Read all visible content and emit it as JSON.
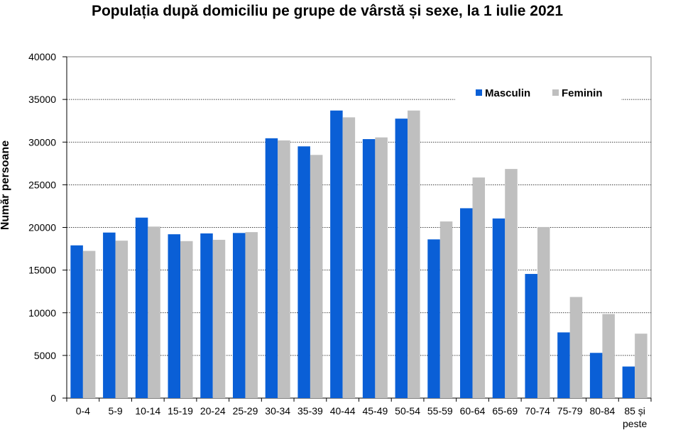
{
  "chart_data": {
    "type": "bar",
    "title": "Populația după domiciliu pe grupe de vârstă și sexe, la 1 iulie 2021",
    "xlabel": "",
    "ylabel": "Număr persoane",
    "ylim": [
      0,
      40000
    ],
    "yticks": [
      0,
      5000,
      10000,
      15000,
      20000,
      25000,
      30000,
      35000,
      40000
    ],
    "grid": true,
    "legend_position": "top-right",
    "categories": [
      "0-4",
      "5-9",
      "10-14",
      "15-19",
      "20-24",
      "25-29",
      "30-34",
      "35-39",
      "40-44",
      "45-49",
      "50-54",
      "55-59",
      "60-64",
      "65-69",
      "70-74",
      "75-79",
      "80-84",
      "85 și peste"
    ],
    "series": [
      {
        "name": "Masculin",
        "color": "#0a5fd6",
        "values": [
          17900,
          19400,
          21150,
          19200,
          19300,
          19350,
          30450,
          29500,
          33700,
          30350,
          32750,
          18600,
          22250,
          21050,
          14550,
          7700,
          5300,
          3700
        ]
      },
      {
        "name": "Feminin",
        "color": "#bfbfbf",
        "values": [
          17250,
          18450,
          20100,
          18400,
          18550,
          19450,
          30200,
          28500,
          32900,
          30550,
          33700,
          20700,
          25850,
          26850,
          20050,
          11850,
          9850,
          7550
        ]
      }
    ]
  }
}
